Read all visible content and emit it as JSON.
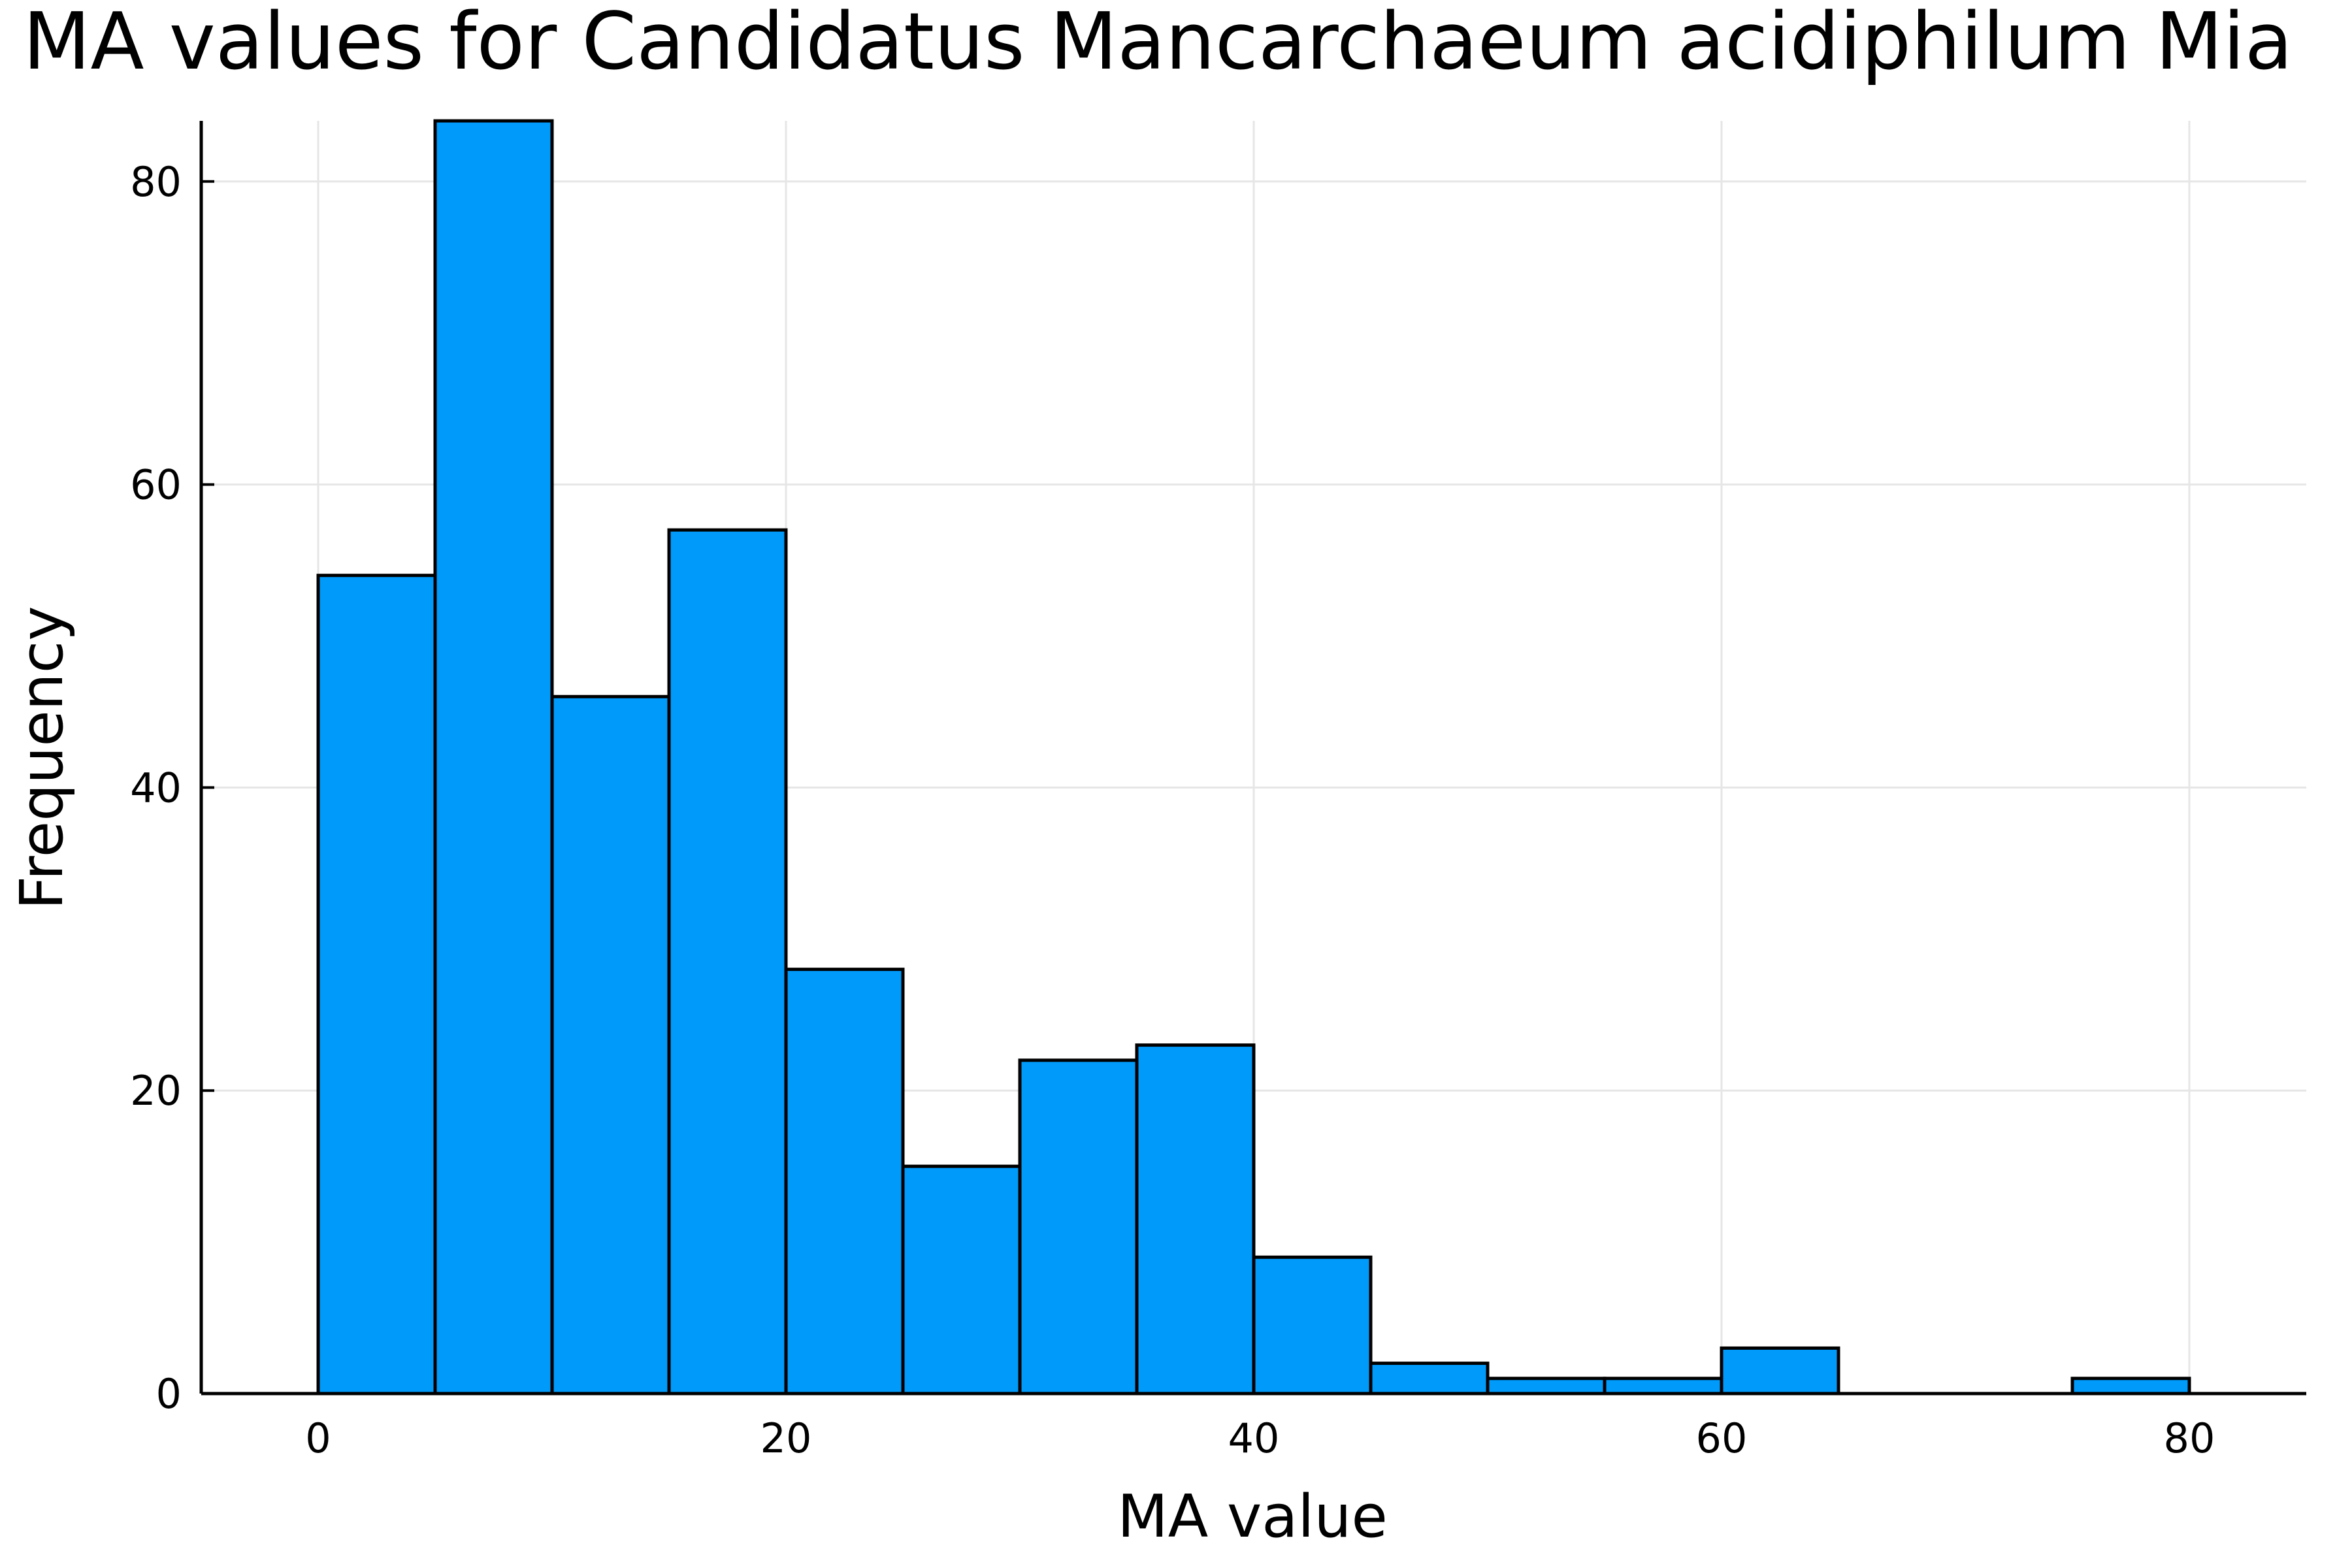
{
  "chart_data": {
    "type": "bar",
    "title": "MA values for Candidatus Mancarchaeum acidiphilum Mia",
    "xlabel": "MA value",
    "ylabel": "Frequency",
    "bins": [
      {
        "x0": 0,
        "x1": 5,
        "count": 54
      },
      {
        "x0": 5,
        "x1": 10,
        "count": 84
      },
      {
        "x0": 10,
        "x1": 15,
        "count": 46
      },
      {
        "x0": 15,
        "x1": 20,
        "count": 57
      },
      {
        "x0": 20,
        "x1": 25,
        "count": 28
      },
      {
        "x0": 25,
        "x1": 30,
        "count": 15
      },
      {
        "x0": 30,
        "x1": 35,
        "count": 22
      },
      {
        "x0": 35,
        "x1": 40,
        "count": 23
      },
      {
        "x0": 40,
        "x1": 45,
        "count": 9
      },
      {
        "x0": 45,
        "x1": 50,
        "count": 2
      },
      {
        "x0": 50,
        "x1": 55,
        "count": 1
      },
      {
        "x0": 55,
        "x1": 60,
        "count": 1
      },
      {
        "x0": 60,
        "x1": 65,
        "count": 3
      },
      {
        "x0": 65,
        "x1": 70,
        "count": 0
      },
      {
        "x0": 70,
        "x1": 75,
        "count": 0
      },
      {
        "x0": 75,
        "x1": 80,
        "count": 1
      }
    ],
    "xlim": [
      -5,
      85
    ],
    "ylim": [
      0,
      84
    ],
    "xticks": [
      0,
      20,
      40,
      60,
      80
    ],
    "yticks": [
      0,
      20,
      40,
      60,
      80
    ],
    "grid": true,
    "legend": "none",
    "colors": {
      "bar_fill": "#009AFA",
      "bar_edge": "#000000",
      "grid": "#E6E6E6"
    }
  }
}
